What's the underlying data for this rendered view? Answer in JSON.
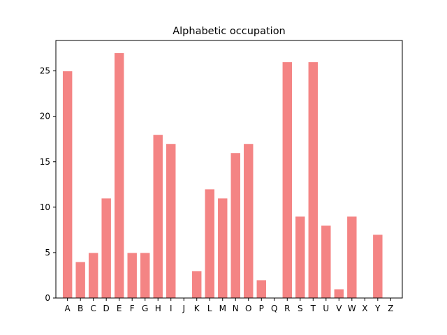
{
  "chart_data": {
    "type": "bar",
    "title": "Alphabetic occupation",
    "xlabel": "",
    "ylabel": "",
    "categories": [
      "A",
      "B",
      "C",
      "D",
      "E",
      "F",
      "G",
      "H",
      "I",
      "J",
      "K",
      "L",
      "M",
      "N",
      "O",
      "P",
      "Q",
      "R",
      "S",
      "T",
      "U",
      "V",
      "W",
      "X",
      "Y",
      "Z"
    ],
    "values": [
      25,
      4,
      5,
      11,
      27,
      5,
      5,
      18,
      17,
      0,
      3,
      12,
      11,
      16,
      17,
      2,
      0,
      26,
      9,
      26,
      8,
      1,
      9,
      0,
      7,
      0
    ],
    "ylim": [
      0,
      28.35
    ],
    "yticks": [
      0,
      5,
      10,
      15,
      20,
      25
    ],
    "grid": false,
    "legend": "none",
    "colors": {
      "bar_fill": "#f48484",
      "bar_edge": "#ffffff",
      "axes": "#000000"
    }
  }
}
